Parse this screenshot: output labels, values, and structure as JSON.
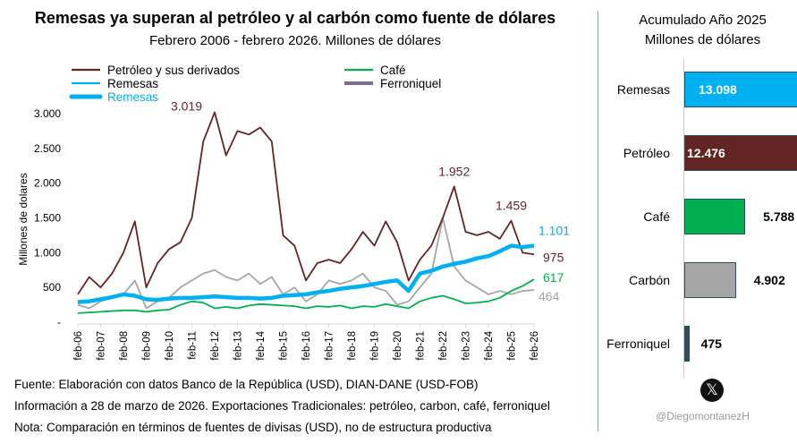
{
  "title": "Remesas ya superan al petróleo y al carbón como fuente de dólares",
  "subtitle": "Febrero 2006 - febrero 2026. Millones de dólares",
  "footer": [
    "Fuente: Elaboración con datos  Banco de la República (USD), DIAN-DANE (USD-FOB)",
    "Información a 28 de marzo de 2026. Exportaciones Tradicionales: petróleo, carbon, café, ferroniquel",
    "Nota: Comparación en términos de fuentes de divisas (USD), no de estructura productiva"
  ],
  "chart_data": [
    {
      "type": "line",
      "ylabel": "Millones de dolares",
      "ylim": [
        0,
        3000
      ],
      "grid": false,
      "legend": "top",
      "yticks": [
        "-",
        "500",
        "1.000",
        "1.500",
        "2.000",
        "2.500",
        "3.000"
      ],
      "yticks_values": [
        0,
        500,
        1000,
        1500,
        2000,
        2500,
        3000
      ],
      "xticks": [
        "feb-06",
        "feb-07",
        "feb-08",
        "feb-09",
        "feb-10",
        "feb-11",
        "feb-12",
        "feb-13",
        "feb-14",
        "feb-15",
        "feb-16",
        "feb-17",
        "feb-18",
        "feb-19",
        "feb-20",
        "feb-21",
        "feb-22",
        "feb-23",
        "feb-24",
        "feb-25",
        "feb-26"
      ],
      "x_note": "semiannual samples from feb-06 to feb-26",
      "series": [
        {
          "name": "Carbón",
          "color": "#a6a6a6",
          "values": [
            250,
            200,
            300,
            350,
            400,
            600,
            200,
            300,
            350,
            500,
            600,
            700,
            750,
            650,
            600,
            700,
            550,
            650,
            400,
            500,
            300,
            400,
            600,
            550,
            600,
            700,
            500,
            450,
            250,
            300,
            500,
            700,
            1500,
            800,
            600,
            500,
            400,
            450,
            400,
            450,
            464
          ],
          "label": "464"
        },
        {
          "name": "Café",
          "color": "#00b050",
          "values": [
            130,
            140,
            150,
            160,
            170,
            170,
            150,
            170,
            180,
            250,
            300,
            280,
            200,
            220,
            200,
            240,
            260,
            250,
            240,
            230,
            200,
            230,
            220,
            240,
            200,
            230,
            220,
            260,
            230,
            200,
            300,
            350,
            380,
            330,
            270,
            280,
            300,
            350,
            450,
            520,
            617
          ],
          "label": "617"
        },
        {
          "name": "Petróleo y sus derivados",
          "color": "#632523",
          "values": [
            400,
            650,
            500,
            700,
            1000,
            1450,
            500,
            850,
            1050,
            1150,
            1500,
            2600,
            3019,
            2400,
            2750,
            2700,
            2800,
            2600,
            1250,
            1100,
            600,
            850,
            900,
            850,
            1050,
            1300,
            1100,
            1450,
            1150,
            600,
            900,
            1100,
            1500,
            1952,
            1300,
            1250,
            1300,
            1200,
            1459,
            1000,
            975
          ],
          "labels": [
            {
              "i": 12,
              "text": "3.019"
            },
            {
              "i": 33,
              "text": "1.952"
            },
            {
              "i": 38,
              "text": "1.459"
            },
            {
              "i": 40,
              "text": "975"
            }
          ]
        },
        {
          "name": "Ferroniquel",
          "color": "#7f6a9b",
          "values": []
        },
        {
          "name": "Remesas",
          "color": "#00b0f0",
          "values": [
            290,
            300,
            330,
            360,
            400,
            380,
            330,
            320,
            340,
            350,
            350,
            360,
            370,
            360,
            350,
            350,
            340,
            350,
            380,
            390,
            400,
            430,
            450,
            480,
            500,
            520,
            550,
            580,
            600,
            450,
            700,
            740,
            800,
            840,
            870,
            920,
            950,
            1020,
            1100,
            1080,
            1101
          ],
          "label": "1.101"
        }
      ]
    },
    {
      "type": "bar",
      "orientation": "horizontal",
      "title": "Acumulado Año 2025",
      "subtitle": "Millones de dólares",
      "categories": [
        "Remesas",
        "Petróleo",
        "Café",
        "Carbón",
        "Ferroniquel"
      ],
      "values": [
        13098,
        12476,
        5788,
        4902,
        475
      ],
      "value_labels": [
        "13.098",
        "12.476",
        "5.788",
        "4.902",
        "475"
      ],
      "colors": [
        "#00b0f0",
        "#632523",
        "#00b050",
        "#a6a6a6",
        "#2d4f5a"
      ]
    }
  ],
  "handle": "@DiegomontanezH",
  "logo_icon": "x-logo-icon"
}
